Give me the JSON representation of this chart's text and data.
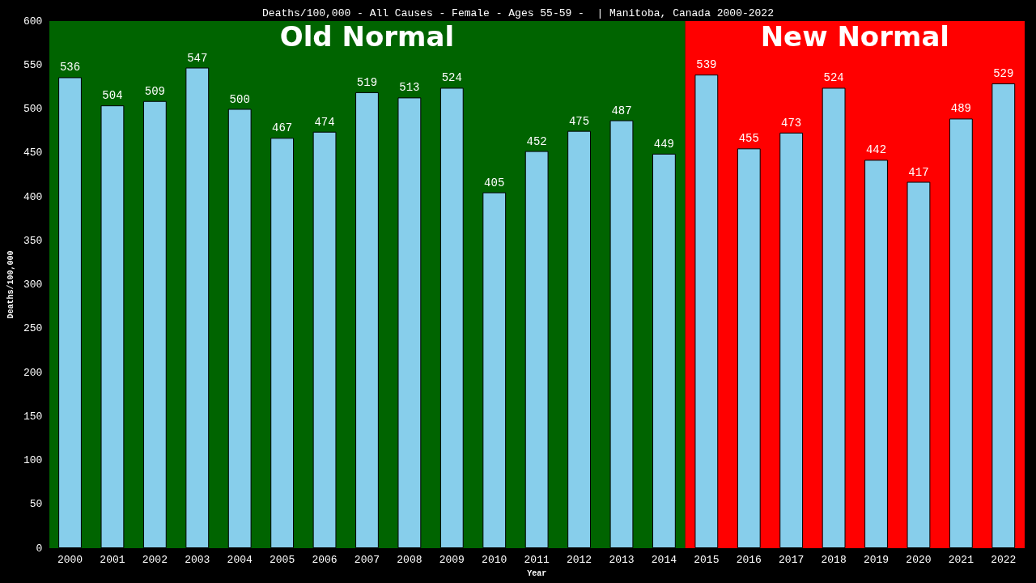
{
  "chart_data": {
    "type": "bar",
    "title": "Deaths/100,000 - All Causes - Female - Ages 55-59 -  | Manitoba, Canada 2000-2022",
    "xlabel": "Year",
    "ylabel": "Deaths/100,000",
    "categories": [
      "2000",
      "2001",
      "2002",
      "2003",
      "2004",
      "2005",
      "2006",
      "2007",
      "2008",
      "2009",
      "2010",
      "2011",
      "2012",
      "2013",
      "2014",
      "2015",
      "2016",
      "2017",
      "2018",
      "2019",
      "2020",
      "2021",
      "2022"
    ],
    "values": [
      536,
      504,
      509,
      547,
      500,
      467,
      474,
      519,
      513,
      524,
      405,
      452,
      475,
      487,
      449,
      539,
      455,
      473,
      524,
      442,
      417,
      489,
      529
    ],
    "color": "#87ceeb",
    "data_labels": true,
    "ylim": [
      0,
      600
    ],
    "yticks": [
      0,
      50,
      100,
      150,
      200,
      250,
      300,
      350,
      400,
      450,
      500,
      550,
      600
    ],
    "grid": false,
    "bands": [
      {
        "axis": "x",
        "from": "2000",
        "to": "2014",
        "label": "Old Normal",
        "color": "#006400"
      },
      {
        "axis": "x",
        "from": "2015",
        "to": "2022",
        "label": "New Normal",
        "color": "#ff0000"
      }
    ]
  }
}
